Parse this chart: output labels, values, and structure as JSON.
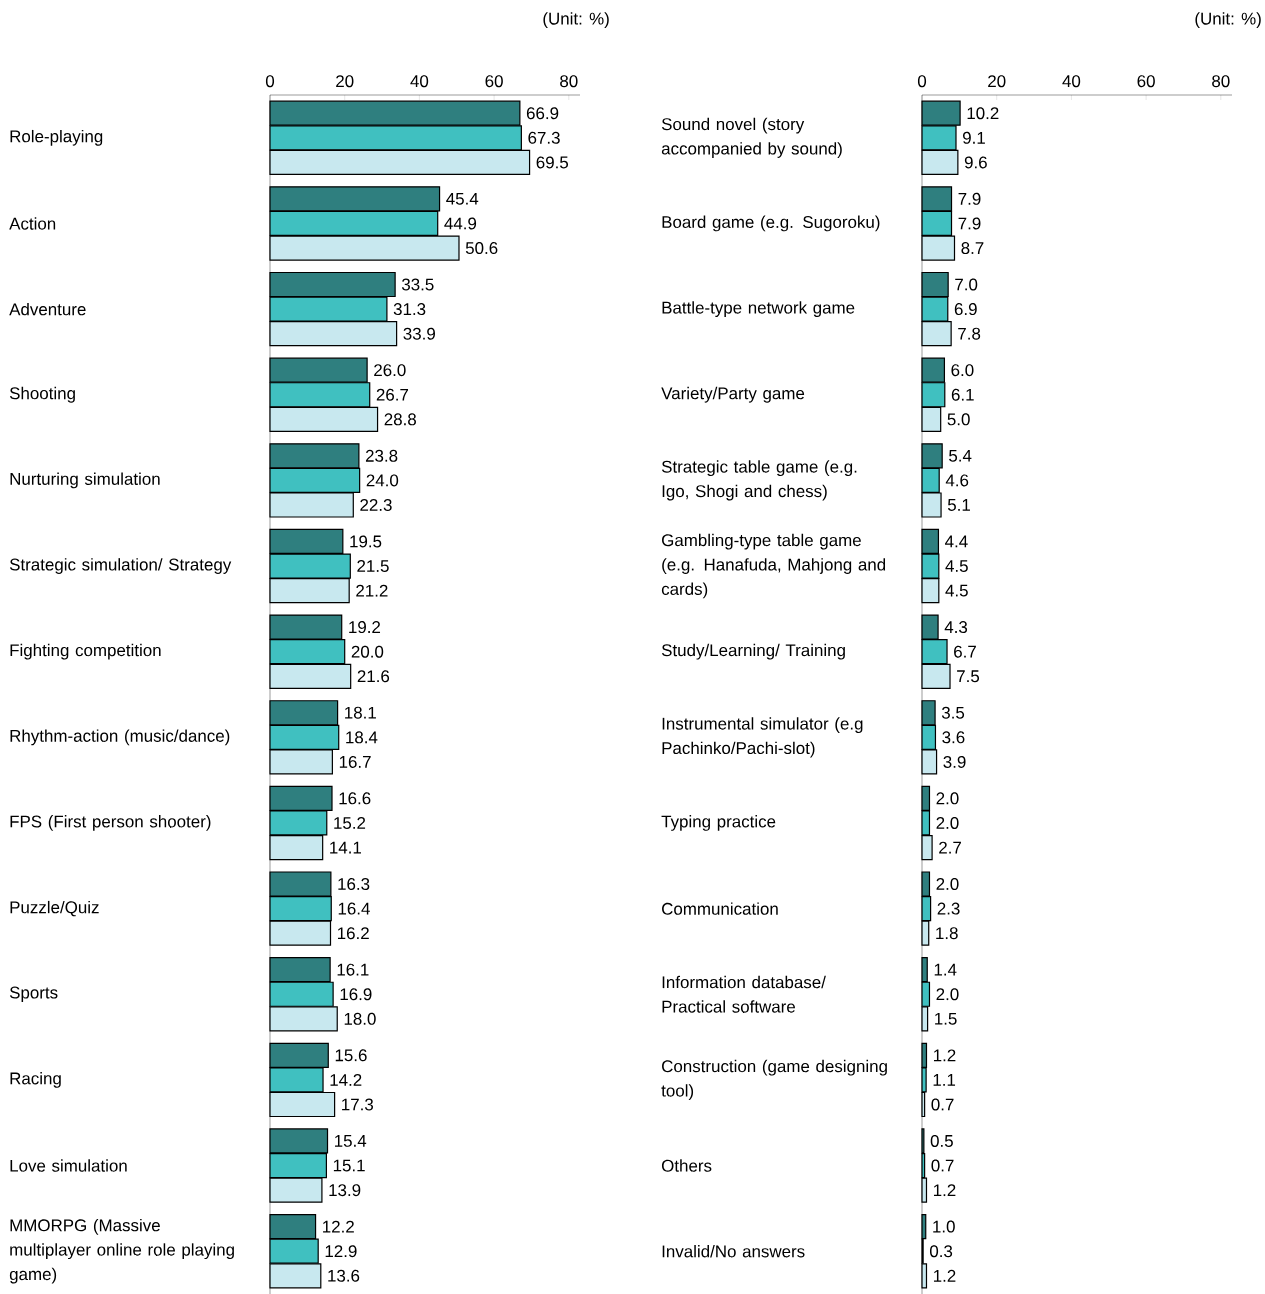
{
  "chart_data": [
    {
      "type": "bar",
      "orientation": "horizontal",
      "annotations": [
        "(Unit: %)"
      ],
      "categories": [
        "Role-playing",
        "Action",
        "Adventure",
        "Shooting",
        "Nurturing simulation",
        "Strategic simulation/ Strategy",
        "Fighting competition",
        "Rhythm-action (music/dance)",
        "FPS (First person shooter)",
        "Puzzle/Quiz",
        "Sports",
        "Racing",
        "Love simulation",
        "MMORPG (Massive multiplayer online role playing game)"
      ],
      "xlim": [
        0,
        83
      ],
      "xticks": [
        0,
        20,
        40,
        60,
        80
      ],
      "series": [
        {
          "color": "#2f7f7f",
          "values": [
            66.9,
            45.4,
            33.5,
            26.0,
            23.8,
            19.5,
            19.2,
            18.1,
            16.6,
            16.3,
            16.1,
            15.6,
            15.4,
            12.2
          ],
          "value_labels": [
            "66.9",
            "45.4",
            "33.5",
            "26.0",
            "23.8",
            "19.5",
            "19.2",
            "18.1",
            "16.6",
            "16.3",
            "16.1",
            "15.6",
            "15.4",
            "12.2"
          ]
        },
        {
          "color": "#40c0c0",
          "values": [
            67.3,
            44.9,
            31.3,
            26.7,
            24.0,
            21.5,
            20.0,
            18.4,
            15.2,
            16.4,
            16.9,
            14.2,
            15.1,
            12.9
          ],
          "value_labels": [
            "67.3",
            "44.9",
            "31.3",
            "26.7",
            "24.0",
            "21.5",
            "20.0",
            "18.4",
            "15.2",
            "16.4",
            "16.9",
            "14.2",
            "15.1",
            "12.9"
          ]
        },
        {
          "color": "#c8e8ef",
          "values": [
            69.5,
            50.6,
            33.9,
            28.8,
            22.3,
            21.2,
            21.6,
            16.7,
            14.1,
            16.2,
            18.0,
            17.3,
            13.9,
            13.6
          ],
          "value_labels": [
            "69.5",
            "50.6",
            "33.9",
            "28.8",
            "22.3",
            "21.2",
            "21.6",
            "16.7",
            "14.1",
            "16.2",
            "18.0",
            "17.3",
            "13.9",
            "13.6"
          ]
        }
      ]
    },
    {
      "type": "bar",
      "orientation": "horizontal",
      "annotations": [
        "(Unit: %)"
      ],
      "categories": [
        "Sound novel (story accompanied by sound)",
        "Board game (e.g. Sugoroku)",
        "Battle-type network game",
        "Variety/Party game",
        "Strategic table game (e.g. Igo, Shogi and chess)",
        "Gambling-type table game (e.g. Hanafuda, Mahjong and cards)",
        "Study/Learning/ Training",
        "Instrumental simulator (e.g Pachinko/Pachi-slot)",
        "Typing practice",
        "Communication",
        "Information database/ Practical software",
        "Construction (game designing tool)",
        "Others",
        "Invalid/No answers"
      ],
      "xlim": [
        0,
        83
      ],
      "xticks": [
        0,
        20,
        40,
        60,
        80
      ],
      "series": [
        {
          "color": "#2f7f7f",
          "values": [
            10.2,
            7.9,
            7.0,
            6.0,
            5.4,
            4.4,
            4.3,
            3.5,
            2.0,
            2.0,
            1.4,
            1.2,
            0.5,
            1.0
          ],
          "value_labels": [
            "10.2",
            "7.9",
            "7.0",
            "6.0",
            "5.4",
            "4.4",
            "4.3",
            "3.5",
            "2.0",
            "2.0",
            "1.4",
            "1.2",
            "0.5",
            "1.0"
          ]
        },
        {
          "color": "#40c0c0",
          "values": [
            9.1,
            7.9,
            6.9,
            6.1,
            4.6,
            4.5,
            6.7,
            3.6,
            2.0,
            2.3,
            2.0,
            1.1,
            0.7,
            0.3
          ],
          "value_labels": [
            "9.1",
            "7.9",
            "6.9",
            "6.1",
            "4.6",
            "4.5",
            "6.7",
            "3.6",
            "2.0",
            "2.3",
            "2.0",
            "1.1",
            "0.7",
            "0.3"
          ]
        },
        {
          "color": "#c8e8ef",
          "values": [
            9.6,
            8.7,
            7.8,
            5.0,
            5.1,
            4.5,
            7.5,
            3.9,
            2.7,
            1.8,
            1.5,
            0.7,
            1.2,
            1.2
          ],
          "value_labels": [
            "9.6",
            "8.7",
            "7.8",
            "5.0",
            "5.1",
            "4.5",
            "7.5",
            "3.9",
            "2.7",
            "1.8",
            "1.5",
            "0.7",
            "1.2",
            "1.2"
          ]
        }
      ]
    }
  ]
}
